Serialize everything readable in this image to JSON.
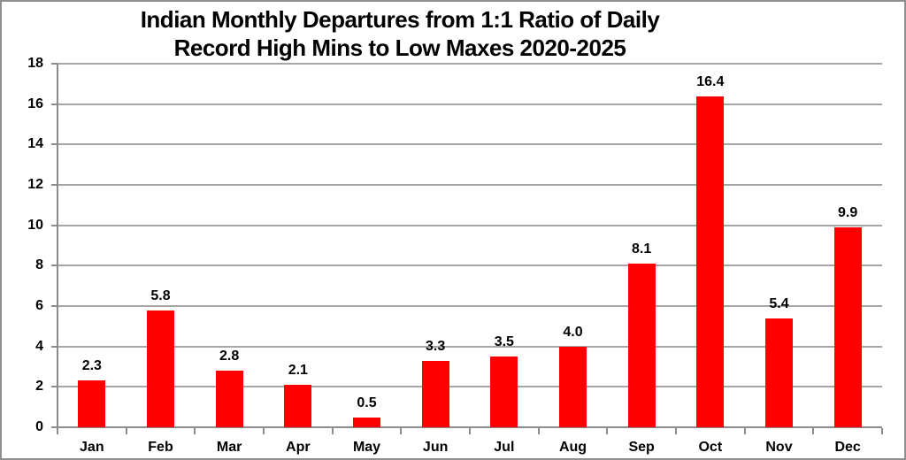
{
  "chart_data": {
    "type": "bar",
    "title": "Indian Monthly Departures from 1:1 Ratio of Daily Record High Mins to Low Maxes 2020-2025",
    "title_lines": [
      "Indian Monthly Departures from 1:1 Ratio of Daily",
      "Record High Mins to Low Maxes 2020-2025"
    ],
    "categories": [
      "Jan",
      "Feb",
      "Mar",
      "Apr",
      "May",
      "Jun",
      "Jul",
      "Aug",
      "Sep",
      "Oct",
      "Nov",
      "Dec"
    ],
    "values": [
      2.3,
      5.8,
      2.8,
      2.1,
      0.5,
      3.3,
      3.5,
      4.0,
      8.1,
      16.4,
      5.4,
      9.9
    ],
    "data_labels": [
      "2.3",
      "5.8",
      "2.8",
      "2.1",
      "0.5",
      "3.3",
      "3.5",
      "4.0",
      "8.1",
      "16.4",
      "5.4",
      "9.9"
    ],
    "xlabel": "",
    "ylabel": "",
    "ylim": [
      0,
      18
    ],
    "ytick_step": 2,
    "ytick_labels": [
      "0",
      "2",
      "4",
      "6",
      "8",
      "10",
      "12",
      "14",
      "16",
      "18"
    ],
    "grid": true,
    "legend_position": "none",
    "colors": {
      "bar": "#ff0000",
      "gridline": "#a6a6a6",
      "axis": "#8c8c8c",
      "text": "#000000",
      "frame_border": "#8f8f8f",
      "background": "#ffffff"
    }
  }
}
